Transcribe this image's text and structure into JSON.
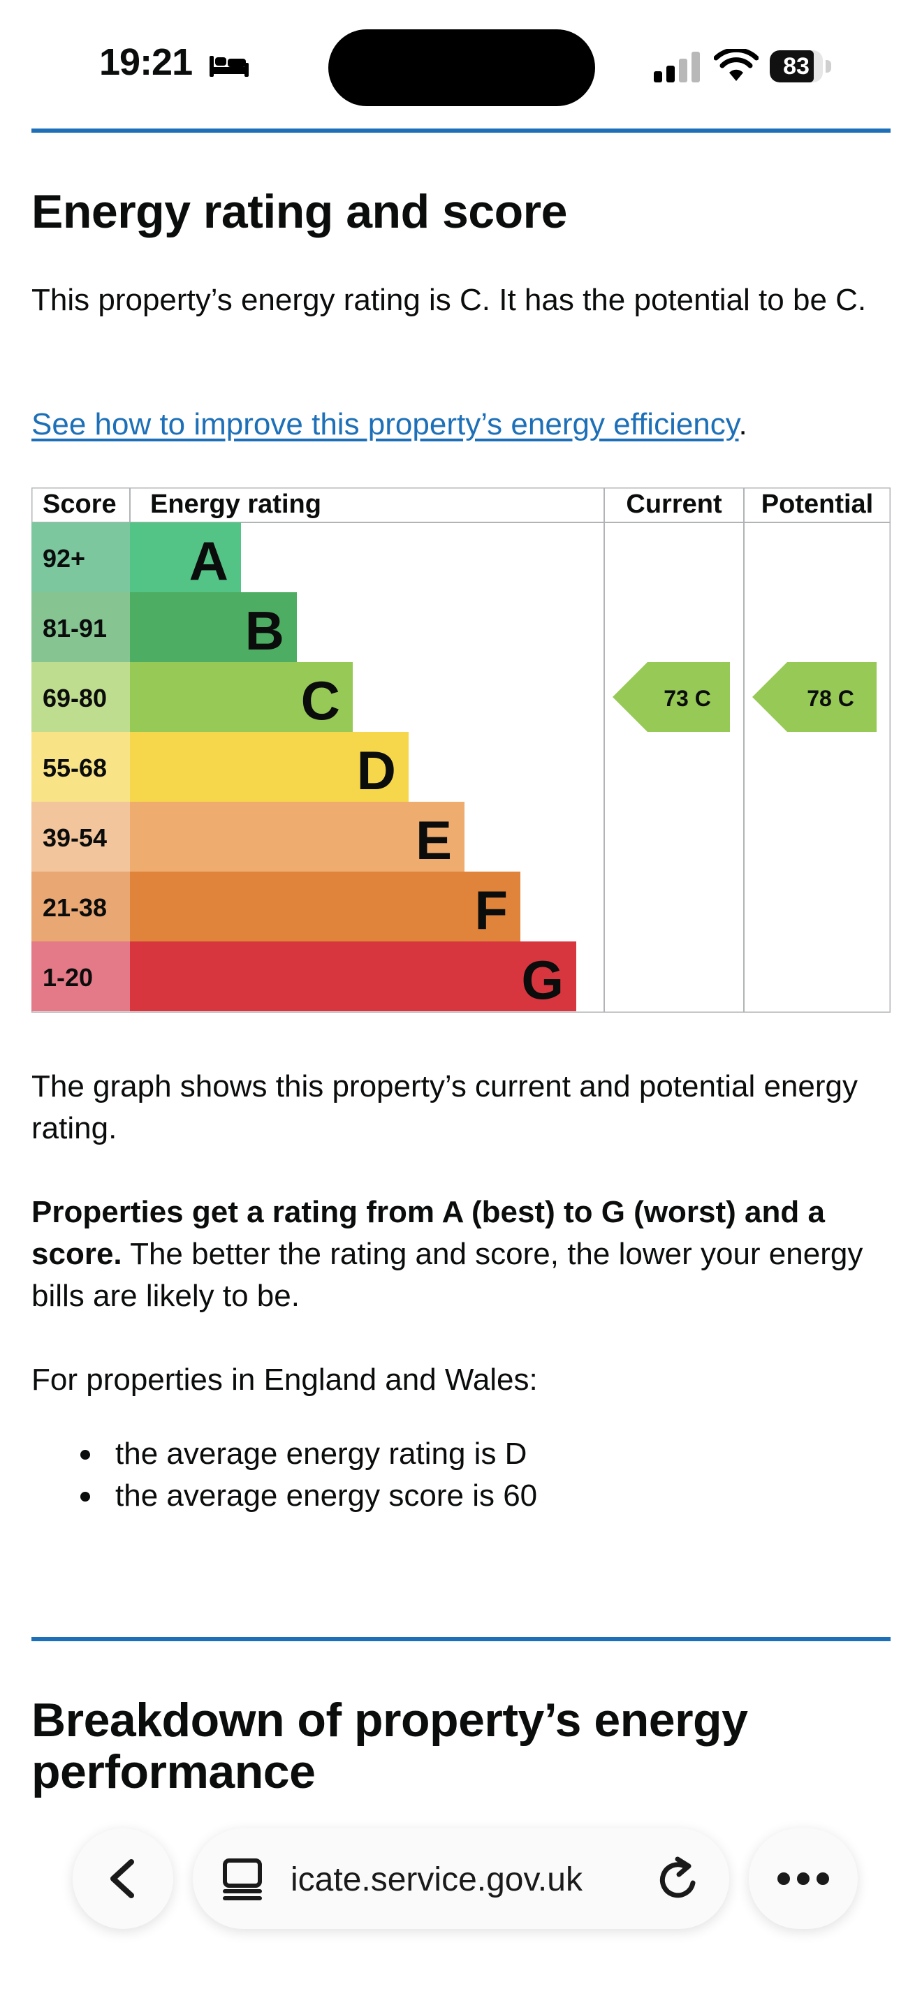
{
  "status_bar": {
    "time": "19:21",
    "battery_percent": 83,
    "icons": [
      "bed-icon",
      "cellular-signal-icon",
      "wifi-icon",
      "battery-icon"
    ]
  },
  "section1": {
    "heading": "Energy rating and score",
    "intro": "This property’s energy rating is C. It has the potential to be C.",
    "improve_link": "See how to improve this property’s energy efficiency",
    "improve_link_after": "."
  },
  "chart_data": {
    "type": "table",
    "headers": [
      "Score",
      "Energy rating",
      "Current",
      "Potential"
    ],
    "bands": [
      {
        "score": "92+",
        "letter": "A",
        "band_color": "#54c386",
        "score_color": "#7dc79e"
      },
      {
        "score": "81-91",
        "letter": "B",
        "band_color": "#4dad63",
        "score_color": "#86c492"
      },
      {
        "score": "69-80",
        "letter": "C",
        "band_color": "#97c956",
        "score_color": "#bfdd8f"
      },
      {
        "score": "55-68",
        "letter": "D",
        "band_color": "#f6d74b",
        "score_color": "#f8e387"
      },
      {
        "score": "39-54",
        "letter": "E",
        "band_color": "#eeac6f",
        "score_color": "#f2c59c"
      },
      {
        "score": "21-38",
        "letter": "F",
        "band_color": "#e0843b",
        "score_color": "#e9a774"
      },
      {
        "score": "1-20",
        "letter": "G",
        "band_color": "#d7363f",
        "score_color": "#e47987"
      }
    ],
    "current": {
      "score": 73,
      "rating": "C",
      "label": "73  C"
    },
    "potential": {
      "score": 78,
      "rating": "C",
      "label": "78  C"
    }
  },
  "section1_after": {
    "graph_note": "The graph shows this property’s current and potential energy rating.",
    "rating_bold": "Properties get a rating from A (best) to G (worst) and a score.",
    "rating_rest": " The better the rating and score, the lower your energy bills are likely to be.",
    "england_wales": "For properties in England and Wales:",
    "bullets": [
      "the average energy rating is D",
      "the average energy score is 60"
    ]
  },
  "section2": {
    "heading": "Breakdown of property’s energy performance"
  },
  "browser_bar": {
    "url": "icate.service.gov.uk",
    "icons": [
      "back-arrow-icon",
      "tab-page-icon",
      "reload-icon",
      "more-dots-icon"
    ]
  }
}
